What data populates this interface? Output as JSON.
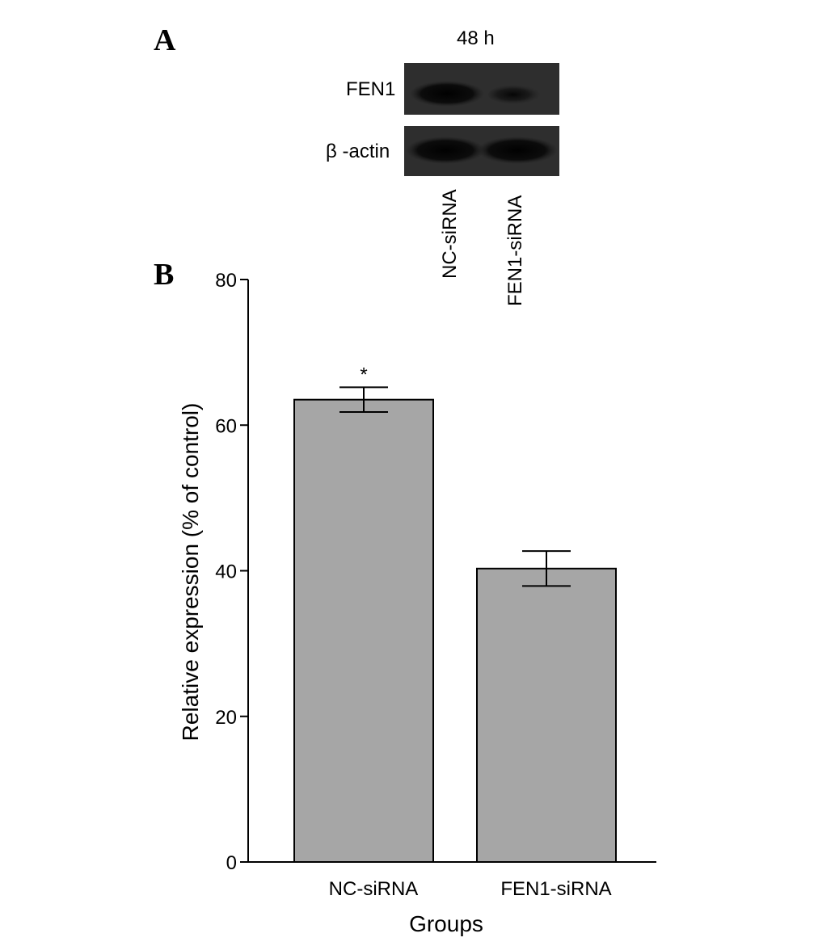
{
  "panel_a": {
    "label": "A",
    "timepoint": "48 h",
    "bands": [
      {
        "name": "FEN1"
      },
      {
        "name": "β -actin"
      }
    ],
    "lanes": [
      "NC-siRNA",
      "FEN1-siRNA"
    ]
  },
  "panel_b": {
    "label": "B"
  },
  "chart_data": {
    "type": "bar",
    "categories": [
      "NC-siRNA",
      "FEN1-siRNA"
    ],
    "values": [
      63.5,
      40.3
    ],
    "error": [
      1.7,
      2.4
    ],
    "annotations": [
      {
        "category": "NC-siRNA",
        "text": "*"
      }
    ],
    "xlabel": "Groups",
    "ylabel": "Relative expression (% of control)",
    "ylim": [
      0,
      80
    ],
    "yticks": [
      0,
      20,
      40,
      60,
      80
    ],
    "grid": false,
    "legend": "none",
    "bar_color": "#a6a6a6"
  }
}
